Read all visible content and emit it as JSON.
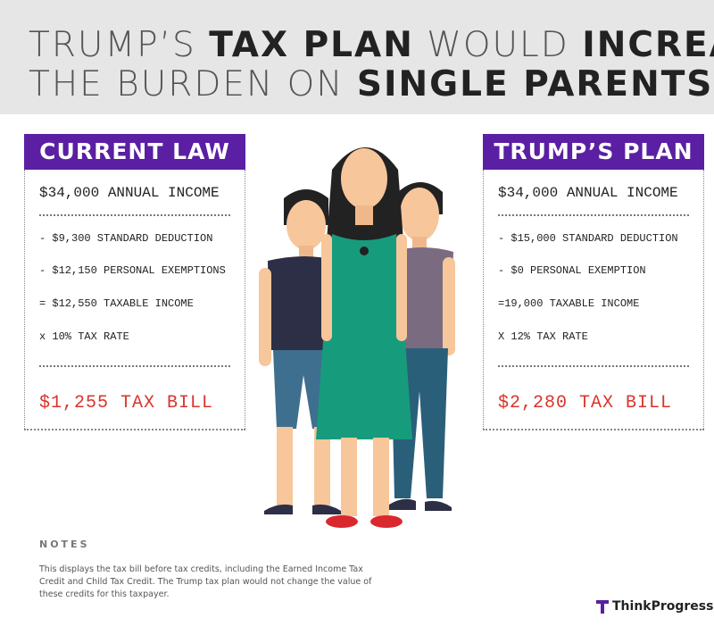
{
  "header": {
    "title_lines": [
      [
        {
          "text": "TRUMP’S ",
          "bold": false
        },
        {
          "text": "TAX PLAN",
          "bold": true
        },
        {
          "text": " WOULD ",
          "bold": false
        },
        {
          "text": "INCREASE",
          "bold": true
        }
      ],
      [
        {
          "text": "THE BURDEN ON ",
          "bold": false
        },
        {
          "text": "SINGLE PARENTS",
          "bold": true
        }
      ]
    ]
  },
  "panels": [
    {
      "heading": "CURRENT LAW",
      "income": "$34,000 ANNUAL INCOME",
      "lines": [
        "- $9,300  STANDARD DEDUCTION",
        "- $12,150 PERSONAL EXEMPTIONS",
        "= $12,550 TAXABLE INCOME",
        "x 10% TAX RATE"
      ],
      "total": "$1,255 TAX BILL"
    },
    {
      "heading": "TRUMP’S PLAN",
      "income": "$34,000 ANNUAL INCOME",
      "lines": [
        "- $15,000 STANDARD DEDUCTION",
        "- $0 PERSONAL EXEMPTION",
        "=19,000 TAXABLE INCOME",
        "X 12% TAX RATE"
      ],
      "total": "$2,280 TAX BILL"
    }
  ],
  "notes": {
    "heading": "NOTES",
    "lines": [
      "This displays the tax bill before tax credits, including the Earned Income Tax",
      "Credit and Child Tax Credit. The Trump tax plan would not change the value of",
      "these credits for this taxpayer."
    ]
  },
  "logo": "ThinkProgress"
}
